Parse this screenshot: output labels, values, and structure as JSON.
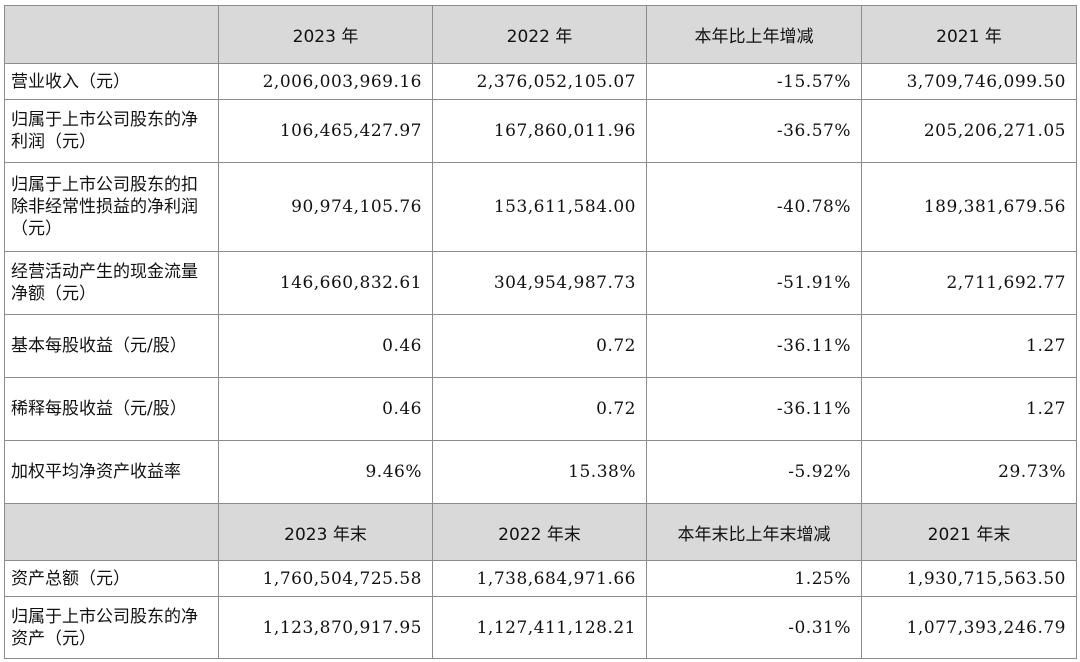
{
  "header": {
    "col1": "2023 年",
    "col2": "2022 年",
    "col3": "本年比上年增减",
    "col4": "2021 年"
  },
  "rows": [
    {
      "label": "营业收入（元）",
      "v2023": "2,006,003,969.16",
      "v2022": "2,376,052,105.07",
      "change": "-15.57%",
      "v2021": "3,709,746,099.50"
    },
    {
      "label": "归属于上市公司股东的净利润（元）",
      "v2023": "106,465,427.97",
      "v2022": "167,860,011.96",
      "change": "-36.57%",
      "v2021": "205,206,271.05"
    },
    {
      "label": "归属于上市公司股东的扣除非经常性损益的净利润（元）",
      "v2023": "90,974,105.76",
      "v2022": "153,611,584.00",
      "change": "-40.78%",
      "v2021": "189,381,679.56"
    },
    {
      "label": "经营活动产生的现金流量净额（元）",
      "v2023": "146,660,832.61",
      "v2022": "304,954,987.73",
      "change": "-51.91%",
      "v2021": "2,711,692.77"
    },
    {
      "label": "基本每股收益（元/股）",
      "v2023": "0.46",
      "v2022": "0.72",
      "change": "-36.11%",
      "v2021": "1.27"
    },
    {
      "label": "稀释每股收益（元/股）",
      "v2023": "0.46",
      "v2022": "0.72",
      "change": "-36.11%",
      "v2021": "1.27"
    },
    {
      "label": "加权平均净资产收益率",
      "v2023": "9.46%",
      "v2022": "15.38%",
      "change": "-5.92%",
      "v2021": "29.73%"
    }
  ],
  "subheader": {
    "col1": "2023 年末",
    "col2": "2022 年末",
    "col3": "本年末比上年末增减",
    "col4": "2021 年末"
  },
  "rows2": [
    {
      "label": "资产总额（元）",
      "v2023": "1,760,504,725.58",
      "v2022": "1,738,684,971.66",
      "change": "1.25%",
      "v2021": "1,930,715,563.50"
    },
    {
      "label": "归属于上市公司股东的净资产（元）",
      "v2023": "1,123,870,917.95",
      "v2022": "1,127,411,128.21",
      "change": "-0.31%",
      "v2021": "1,077,393,246.79"
    }
  ]
}
